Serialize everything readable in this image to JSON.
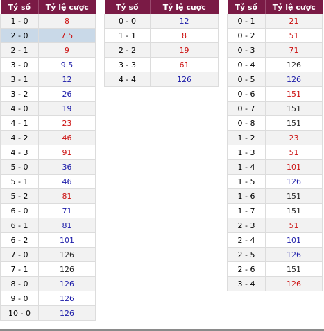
{
  "headers": {
    "score": "Tỷ số",
    "odds": "Tỷ lệ cược"
  },
  "colors": {
    "header_bg": "#7a1a45",
    "red": "#cc1111",
    "blue": "#1a1aa8",
    "highlight": "#c9d9e8"
  },
  "tables": [
    {
      "rows": [
        {
          "score": "1 - 0",
          "odds": "8",
          "color": "red"
        },
        {
          "score": "2 - 0",
          "odds": "7.5",
          "color": "red",
          "highlight": true
        },
        {
          "score": "2 - 1",
          "odds": "9",
          "color": "red"
        },
        {
          "score": "3 - 0",
          "odds": "9.5",
          "color": "blue"
        },
        {
          "score": "3 - 1",
          "odds": "12",
          "color": "blue"
        },
        {
          "score": "3 - 2",
          "odds": "26",
          "color": "blue"
        },
        {
          "score": "4 - 0",
          "odds": "19",
          "color": "blue"
        },
        {
          "score": "4 - 1",
          "odds": "23",
          "color": "red"
        },
        {
          "score": "4 - 2",
          "odds": "46",
          "color": "red"
        },
        {
          "score": "4 - 3",
          "odds": "91",
          "color": "red"
        },
        {
          "score": "5 - 0",
          "odds": "36",
          "color": "blue"
        },
        {
          "score": "5 - 1",
          "odds": "46",
          "color": "blue"
        },
        {
          "score": "5 - 2",
          "odds": "81",
          "color": "red"
        },
        {
          "score": "6 - 0",
          "odds": "71",
          "color": "blue"
        },
        {
          "score": "6 - 1",
          "odds": "81",
          "color": "blue"
        },
        {
          "score": "6 - 2",
          "odds": "101",
          "color": "blue"
        },
        {
          "score": "7 - 0",
          "odds": "126",
          "color": "black"
        },
        {
          "score": "7 - 1",
          "odds": "126",
          "color": "black"
        },
        {
          "score": "8 - 0",
          "odds": "126",
          "color": "blue"
        },
        {
          "score": "9 - 0",
          "odds": "126",
          "color": "blue"
        },
        {
          "score": "10 - 0",
          "odds": "126",
          "color": "blue"
        }
      ]
    },
    {
      "rows": [
        {
          "score": "0 - 0",
          "odds": "12",
          "color": "blue"
        },
        {
          "score": "1 - 1",
          "odds": "8",
          "color": "red"
        },
        {
          "score": "2 - 2",
          "odds": "19",
          "color": "red"
        },
        {
          "score": "3 - 3",
          "odds": "61",
          "color": "red"
        },
        {
          "score": "4 - 4",
          "odds": "126",
          "color": "blue"
        }
      ]
    },
    {
      "rows": [
        {
          "score": "0 - 1",
          "odds": "21",
          "color": "red"
        },
        {
          "score": "0 - 2",
          "odds": "51",
          "color": "red"
        },
        {
          "score": "0 - 3",
          "odds": "71",
          "color": "red"
        },
        {
          "score": "0 - 4",
          "odds": "126",
          "color": "black"
        },
        {
          "score": "0 - 5",
          "odds": "126",
          "color": "blue"
        },
        {
          "score": "0 - 6",
          "odds": "151",
          "color": "red"
        },
        {
          "score": "0 - 7",
          "odds": "151",
          "color": "black"
        },
        {
          "score": "0 - 8",
          "odds": "151",
          "color": "black"
        },
        {
          "score": "1 - 2",
          "odds": "23",
          "color": "red"
        },
        {
          "score": "1 - 3",
          "odds": "51",
          "color": "red"
        },
        {
          "score": "1 - 4",
          "odds": "101",
          "color": "red"
        },
        {
          "score": "1 - 5",
          "odds": "126",
          "color": "blue"
        },
        {
          "score": "1 - 6",
          "odds": "151",
          "color": "black"
        },
        {
          "score": "1 - 7",
          "odds": "151",
          "color": "black"
        },
        {
          "score": "2 - 3",
          "odds": "51",
          "color": "red"
        },
        {
          "score": "2 - 4",
          "odds": "101",
          "color": "blue"
        },
        {
          "score": "2 - 5",
          "odds": "126",
          "color": "blue"
        },
        {
          "score": "2 - 6",
          "odds": "151",
          "color": "black"
        },
        {
          "score": "3 - 4",
          "odds": "126",
          "color": "red"
        }
      ]
    }
  ]
}
